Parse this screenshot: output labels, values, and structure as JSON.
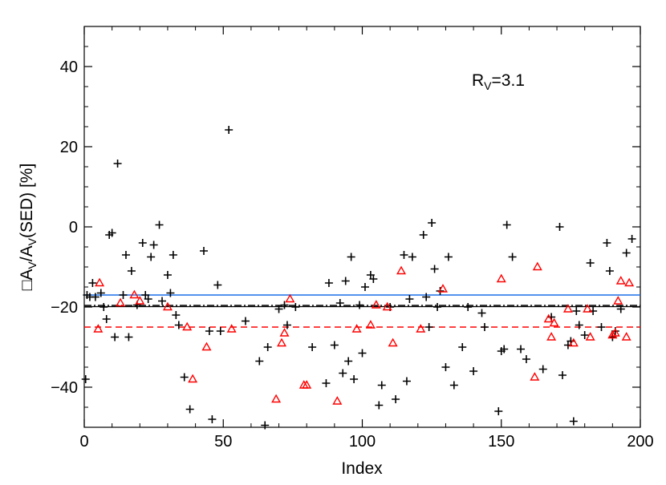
{
  "chart_data": {
    "type": "scatter",
    "xlabel": "Index",
    "ylabel_parts": [
      "□A",
      "V",
      "/A",
      "V",
      "(SED) [%]"
    ],
    "annotation_parts": [
      "R",
      "V",
      "=3.1"
    ],
    "xlim": [
      0,
      200
    ],
    "ylim": [
      -50,
      50
    ],
    "xticks": [
      0,
      50,
      100,
      150,
      200
    ],
    "yticks": [
      -40,
      -20,
      0,
      20,
      40
    ],
    "colors": {
      "black": "#000000",
      "red": "#ff0000",
      "blue": "#1a6fe8"
    },
    "hlines": [
      {
        "style": "solid-blue",
        "y": -17.0
      },
      {
        "style": "dash-dot-black",
        "y": -19.6
      },
      {
        "style": "solid-black",
        "y": -19.9
      },
      {
        "style": "dashed-red",
        "y": -25.0
      }
    ],
    "series": [
      {
        "marker": "plus",
        "color": "#000000",
        "points": [
          [
            0.5,
            -38
          ],
          [
            1,
            -17
          ],
          [
            2,
            -17.5
          ],
          [
            3,
            -14
          ],
          [
            4,
            -17.5
          ],
          [
            6,
            -16.5
          ],
          [
            7,
            -20
          ],
          [
            8,
            -23
          ],
          [
            9,
            -2
          ],
          [
            10,
            -1.5
          ],
          [
            11,
            -27.5
          ],
          [
            12,
            15.8
          ],
          [
            14,
            -17
          ],
          [
            15,
            -7
          ],
          [
            16,
            -27.5
          ],
          [
            17,
            -11
          ],
          [
            19,
            -19.5
          ],
          [
            21,
            -4
          ],
          [
            22,
            -17
          ],
          [
            23,
            -18
          ],
          [
            24,
            -7.5
          ],
          [
            25,
            -4.5
          ],
          [
            27,
            0.5
          ],
          [
            28,
            -18.5
          ],
          [
            30,
            -12
          ],
          [
            31,
            -16.5
          ],
          [
            32,
            -7
          ],
          [
            33,
            -22
          ],
          [
            34,
            -24.5
          ],
          [
            36,
            -37.5
          ],
          [
            38,
            -45.5
          ],
          [
            43,
            -6
          ],
          [
            45,
            -26
          ],
          [
            46,
            -48
          ],
          [
            48,
            -14.5
          ],
          [
            49,
            -26
          ],
          [
            52,
            24.2
          ],
          [
            58,
            -23.5
          ],
          [
            63,
            -33.5
          ],
          [
            65,
            -49.5
          ],
          [
            66,
            -30
          ],
          [
            70,
            -20.5
          ],
          [
            72,
            -19.5
          ],
          [
            73,
            -24.5
          ],
          [
            76,
            -20
          ],
          [
            82,
            -30
          ],
          [
            87,
            -39
          ],
          [
            88,
            -14
          ],
          [
            90,
            -29.5
          ],
          [
            92,
            -19
          ],
          [
            93,
            -36.5
          ],
          [
            94,
            -13.5
          ],
          [
            95,
            -33.5
          ],
          [
            96,
            -7.5
          ],
          [
            97,
            -38
          ],
          [
            99,
            -19.5
          ],
          [
            100,
            -31.5
          ],
          [
            101,
            -15
          ],
          [
            103,
            -12
          ],
          [
            104,
            -13
          ],
          [
            106,
            -44.5
          ],
          [
            107,
            -39.5
          ],
          [
            110,
            -20
          ],
          [
            112,
            -43
          ],
          [
            115,
            -7
          ],
          [
            116,
            -38.5
          ],
          [
            117,
            -18
          ],
          [
            118,
            -7.5
          ],
          [
            122,
            -2
          ],
          [
            123,
            -17.5
          ],
          [
            124,
            -25
          ],
          [
            125,
            1
          ],
          [
            126,
            -10.5
          ],
          [
            127,
            -20
          ],
          [
            128,
            -16
          ],
          [
            130,
            -35
          ],
          [
            131,
            -7.5
          ],
          [
            133,
            -39.5
          ],
          [
            136,
            -30
          ],
          [
            138,
            -20
          ],
          [
            140,
            -36
          ],
          [
            143,
            -21.5
          ],
          [
            144,
            -25
          ],
          [
            149,
            -46
          ],
          [
            150,
            -31
          ],
          [
            151,
            -30.5
          ],
          [
            152,
            0.5
          ],
          [
            154,
            -7.5
          ],
          [
            157,
            -30.5
          ],
          [
            159,
            -33
          ],
          [
            165,
            -35.5
          ],
          [
            168,
            -22.5
          ],
          [
            171,
            0
          ],
          [
            172,
            -37
          ],
          [
            174,
            -29.5
          ],
          [
            175,
            -28.5
          ],
          [
            176,
            -48.5
          ],
          [
            177,
            -21
          ],
          [
            178,
            -24.5
          ],
          [
            180,
            -27
          ],
          [
            182,
            -9
          ],
          [
            183,
            -21
          ],
          [
            186,
            -25
          ],
          [
            188,
            -4
          ],
          [
            189,
            -11
          ],
          [
            190,
            -27.5
          ],
          [
            191,
            -26
          ],
          [
            193,
            -20.5
          ],
          [
            195,
            -6.5
          ],
          [
            197,
            -3
          ]
        ]
      },
      {
        "marker": "triangle",
        "color": "#ff0000",
        "points": [
          [
            5,
            -25.5
          ],
          [
            5.5,
            -14
          ],
          [
            13,
            -19
          ],
          [
            18,
            -17
          ],
          [
            20,
            -18.5
          ],
          [
            30,
            -20
          ],
          [
            37,
            -25
          ],
          [
            39,
            -38
          ],
          [
            44,
            -30
          ],
          [
            53,
            -25.5
          ],
          [
            69,
            -43
          ],
          [
            71,
            -29
          ],
          [
            72,
            -26.5
          ],
          [
            74,
            -18
          ],
          [
            79,
            -39.5
          ],
          [
            80,
            -39.5
          ],
          [
            91,
            -43.5
          ],
          [
            98,
            -25.5
          ],
          [
            103,
            -24.5
          ],
          [
            105,
            -19.5
          ],
          [
            109,
            -20
          ],
          [
            111,
            -29
          ],
          [
            114,
            -11
          ],
          [
            121,
            -25.5
          ],
          [
            129,
            -15.5
          ],
          [
            150,
            -13
          ],
          [
            162,
            -37.5
          ],
          [
            163,
            -10
          ],
          [
            167,
            -23
          ],
          [
            168,
            -27.5
          ],
          [
            169,
            -24
          ],
          [
            174,
            -20.5
          ],
          [
            176,
            -29
          ],
          [
            181,
            -20.5
          ],
          [
            182,
            -27.5
          ],
          [
            190,
            -27
          ],
          [
            191,
            -26.5
          ],
          [
            192,
            -18.5
          ],
          [
            193,
            -13.5
          ],
          [
            195,
            -27.5
          ],
          [
            196,
            -14
          ]
        ]
      }
    ]
  }
}
